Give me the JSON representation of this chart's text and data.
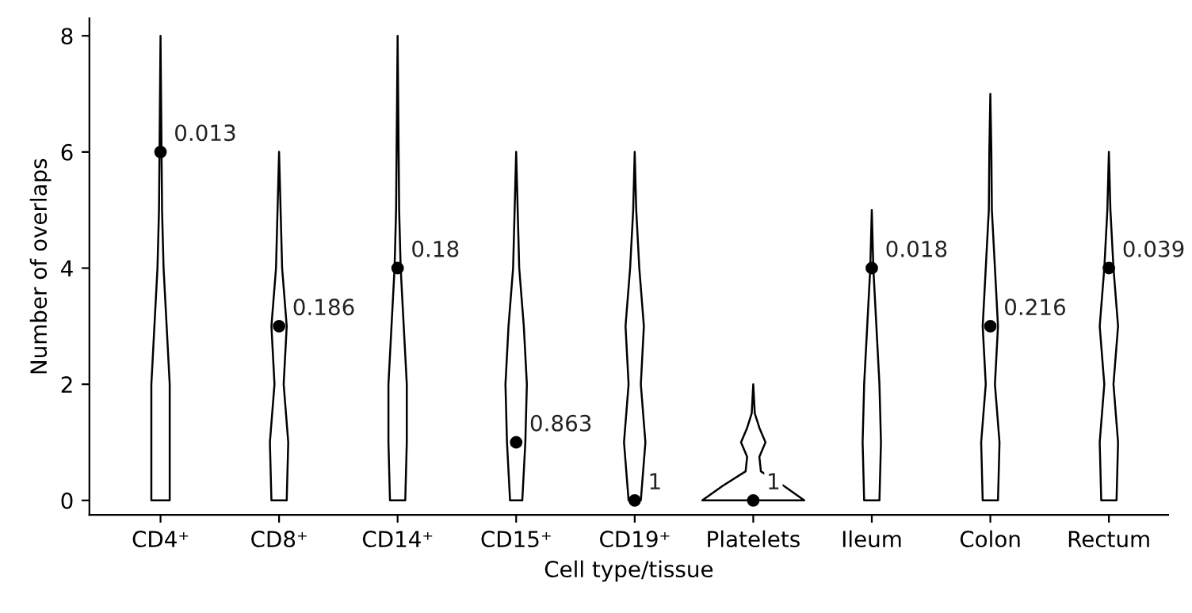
{
  "chart_data": {
    "type": "scatter",
    "xlabel": "Cell type/tissue",
    "ylabel": "Number of overlaps",
    "categories": [
      "CD4⁺",
      "CD8⁺",
      "CD14⁺",
      "CD15⁺",
      "CD19⁺",
      "Platelets",
      "Ileum",
      "Colon",
      "Rectum"
    ],
    "ylim": [
      -0.25,
      8.3
    ],
    "yticks": [
      0,
      2,
      4,
      6,
      8
    ],
    "series": [
      {
        "color": "#000000",
        "marker": "circle",
        "values": [
          6,
          3,
          4,
          1,
          0,
          0,
          4,
          3,
          4
        ]
      }
    ],
    "annotations": [
      {
        "text": "0.013",
        "x": "CD4⁺",
        "y": 6
      },
      {
        "text": "0.186",
        "x": "CD8⁺",
        "y": 3
      },
      {
        "text": "0.18",
        "x": "CD14⁺",
        "y": 4
      },
      {
        "text": "0.863",
        "x": "CD15⁺",
        "y": 1
      },
      {
        "text": "1",
        "x": "CD19⁺",
        "y": 0
      },
      {
        "text": "1",
        "x": "Platelets",
        "y": 0
      },
      {
        "text": "0.018",
        "x": "Ileum",
        "y": 4
      },
      {
        "text": "0.216",
        "x": "Colon",
        "y": 3
      },
      {
        "text": "0.039",
        "x": "Rectum",
        "y": 4
      }
    ]
  }
}
